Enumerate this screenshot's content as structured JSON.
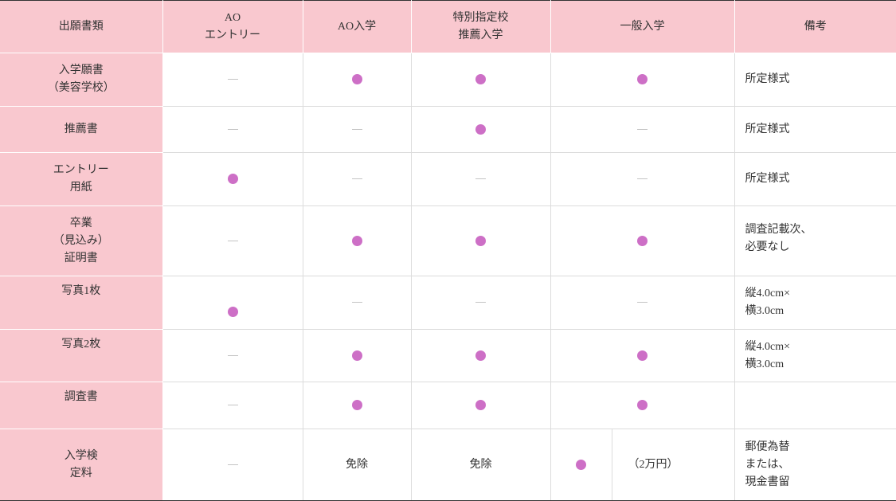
{
  "header": {
    "c0": "出願書類",
    "c1": "AO\nエントリー",
    "c2": "AO入学",
    "c3": "特別指定校\n推薦入学",
    "c4": "一般入学",
    "c5": "備考"
  },
  "rows": [
    {
      "name": "入学願書\n（美容学校）",
      "marks": [
        "none",
        "required",
        "required",
        "required"
      ],
      "note": "所定様式"
    },
    {
      "name": "推薦書",
      "marks": [
        "none",
        "none",
        "required",
        "none"
      ],
      "note": "所定様式"
    },
    {
      "name": "エントリー\n用紙",
      "marks": [
        "required",
        "none",
        "none",
        "none"
      ],
      "note": "所定様式"
    },
    {
      "name": "卒業\n（見込み）\n証明書",
      "marks": [
        "none",
        "required",
        "required",
        "required"
      ],
      "note": "調査記載次、\n必要なし"
    },
    {
      "name": "写真1枚",
      "marks": [
        "required",
        "none",
        "none",
        "none"
      ],
      "note": "縦4.0cm×\n横3.0cm"
    },
    {
      "name": "写真2枚",
      "marks": [
        "none",
        "required",
        "required",
        "required"
      ],
      "note": "縦4.0cm×\n横3.0cm"
    },
    {
      "name": "調査書",
      "marks": [
        "none",
        "required",
        "required",
        "required"
      ],
      "note": ""
    }
  ],
  "fee_row": {
    "name": "入学検\n定料",
    "ao_entry": "none",
    "ao": "免除",
    "special": "免除",
    "general_mark": "required",
    "general_amount": "（2万円）",
    "note": "郵便為替\nまたは、\n現金書留"
  },
  "legend_symbols": {
    "required": "purple-dot",
    "none": "grey-dash"
  },
  "colors": {
    "header_bg": "#f9c8cf",
    "dot": "#cd6fc6",
    "dash": "#c4c4c4"
  }
}
